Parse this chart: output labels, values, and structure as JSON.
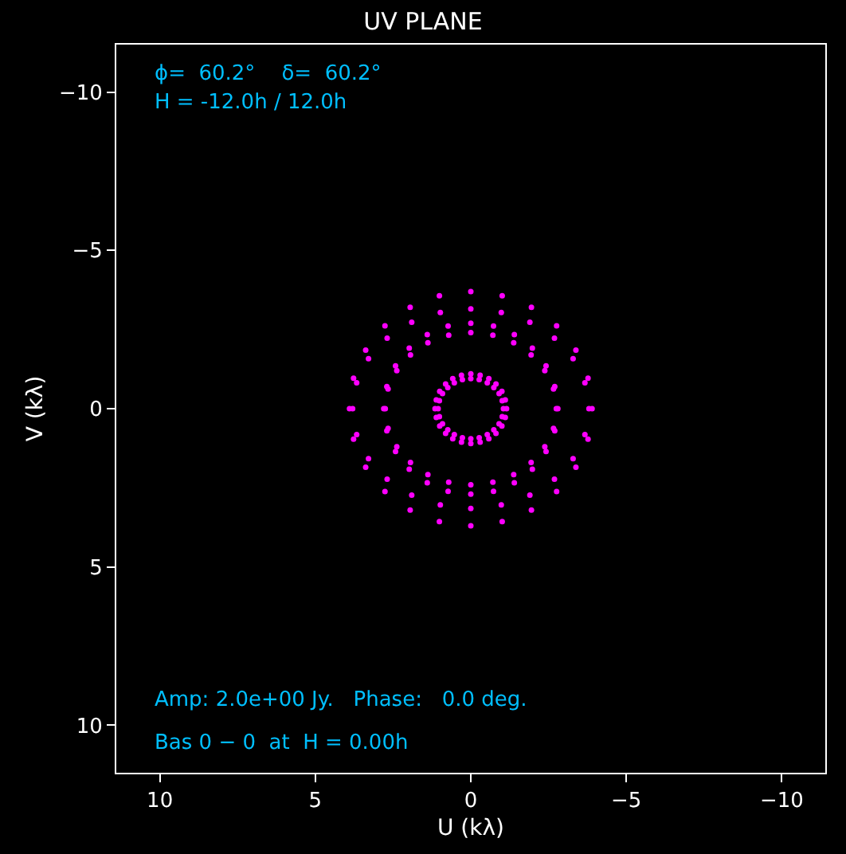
{
  "chart_data": {
    "type": "scatter",
    "title": "UV PLANE",
    "xlabel": "U (kλ)",
    "ylabel": "V (kλ)",
    "annotations": [
      "ϕ=  60.2°    δ=  60.2°",
      "H = -12.0h / 12.0h",
      "Amp: 2.0e+00 Jy.   Phase:   0.0 deg.",
      "Bas 0 − 0  at  H = 0.00h"
    ],
    "xlim": [
      11.4,
      -11.4
    ],
    "ylim": [
      11.5,
      -11.5
    ],
    "xticks": [
      10,
      5,
      0,
      {
        "value": -5,
        "label": "−5"
      },
      {
        "value": -10,
        "label": "−10"
      }
    ],
    "yticks": [
      {
        "value": -10,
        "label": "−10"
      },
      {
        "value": -5,
        "label": "−5"
      },
      0,
      5,
      10
    ],
    "grid": false,
    "marker": "circle",
    "series": [
      {
        "color": "#ff00ff",
        "x": [
          3.9,
          3.77,
          3.38,
          2.76,
          1.95,
          1.01,
          0,
          -1.01,
          -1.95,
          -2.76,
          -3.38,
          -3.77,
          -3.9,
          -3.77,
          -3.38,
          -2.76,
          -1.95,
          -1.01,
          0,
          1.01,
          1.95,
          2.76,
          3.38,
          3.77
        ],
        "values": [
          0,
          0.96,
          1.85,
          2.62,
          3.2,
          3.57,
          3.7,
          3.57,
          3.2,
          2.62,
          1.85,
          0.96,
          0,
          -0.96,
          -1.85,
          -2.62,
          -3.2,
          -3.57,
          -3.7,
          -3.57,
          -3.2,
          -2.62,
          -1.85,
          -0.96
        ]
      },
      {
        "color": "#ff00ff",
        "x": [
          3.8,
          3.67,
          3.29,
          2.69,
          1.9,
          0.98,
          0,
          -0.98,
          -1.9,
          -2.69,
          -3.29,
          -3.67,
          -3.8,
          -3.67,
          -3.29,
          -2.69,
          -1.9,
          -0.98,
          0,
          0.98,
          1.9,
          2.69,
          3.29,
          3.67
        ],
        "values": [
          0,
          0.82,
          1.58,
          2.23,
          2.73,
          3.04,
          3.15,
          3.04,
          2.73,
          2.23,
          1.58,
          0.82,
          0,
          -0.82,
          -1.58,
          -2.23,
          -2.73,
          -3.04,
          -3.15,
          -3.04,
          -2.73,
          -2.23,
          -1.58,
          -0.82
        ]
      },
      {
        "color": "#ff00ff",
        "x": [
          2.8,
          2.7,
          2.42,
          1.98,
          1.4,
          0.73,
          0,
          -0.73,
          -1.4,
          -1.98,
          -2.42,
          -2.7,
          -2.8,
          -2.7,
          -2.42,
          -1.98,
          -1.4,
          -0.73,
          0,
          0.73,
          1.4,
          1.98,
          2.42,
          2.7
        ],
        "values": [
          0,
          0.7,
          1.35,
          1.91,
          2.34,
          2.61,
          2.7,
          2.61,
          2.34,
          1.91,
          1.35,
          0.7,
          0,
          -0.7,
          -1.35,
          -1.91,
          -2.34,
          -2.61,
          -2.7,
          -2.61,
          -2.34,
          -1.91,
          -1.35,
          -0.7
        ]
      },
      {
        "color": "#ff00ff",
        "x": [
          2.75,
          2.66,
          2.38,
          1.94,
          1.38,
          0.71,
          0,
          -0.71,
          -1.38,
          -1.94,
          -2.38,
          -2.66,
          -2.75,
          -2.66,
          -2.38,
          -1.94,
          -1.38,
          -0.71,
          0,
          0.71,
          1.38,
          1.94,
          2.38,
          2.66
        ],
        "values": [
          0,
          0.62,
          1.2,
          1.7,
          2.08,
          2.32,
          2.4,
          2.32,
          2.08,
          1.7,
          1.2,
          0.62,
          0,
          -0.62,
          -1.2,
          -1.7,
          -2.08,
          -2.32,
          -2.4,
          -2.32,
          -2.08,
          -1.7,
          -1.2,
          -0.62
        ]
      },
      {
        "color": "#ff00ff",
        "x": [
          1.15,
          1.11,
          1.0,
          0.81,
          0.58,
          0.3,
          0,
          -0.3,
          -0.58,
          -0.81,
          -1.0,
          -1.11,
          -1.15,
          -1.11,
          -1.0,
          -0.81,
          -0.58,
          -0.3,
          0,
          0.3,
          0.58,
          0.81,
          1.0,
          1.11
        ],
        "values": [
          0,
          0.28,
          0.55,
          0.78,
          0.95,
          1.06,
          1.1,
          1.06,
          0.95,
          0.78,
          0.55,
          0.28,
          0,
          -0.28,
          -0.55,
          -0.78,
          -0.95,
          -1.06,
          -1.1,
          -1.06,
          -0.95,
          -0.78,
          -0.55,
          -0.28
        ]
      },
      {
        "color": "#ff00ff",
        "x": [
          1.05,
          1.01,
          0.91,
          0.74,
          0.53,
          0.27,
          0,
          -0.27,
          -0.53,
          -0.74,
          -0.91,
          -1.01,
          -1.05,
          -1.01,
          -0.91,
          -0.74,
          -0.53,
          -0.27,
          0,
          0.27,
          0.53,
          0.74,
          0.91,
          1.01
        ],
        "values": [
          0,
          0.25,
          0.48,
          0.67,
          0.82,
          0.92,
          0.95,
          0.92,
          0.82,
          0.67,
          0.48,
          0.25,
          0,
          -0.25,
          -0.48,
          -0.67,
          -0.82,
          -0.92,
          -0.95,
          -0.92,
          -0.82,
          -0.67,
          -0.48,
          -0.25
        ]
      }
    ]
  }
}
